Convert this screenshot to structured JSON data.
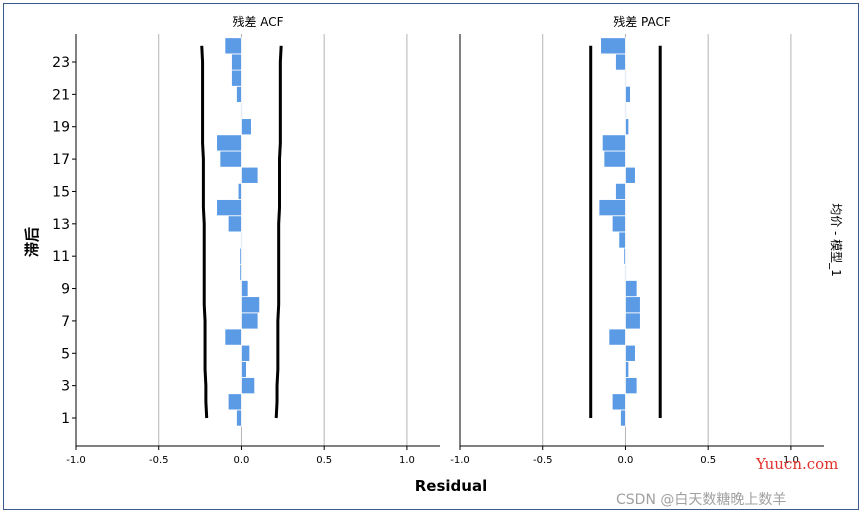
{
  "chart_data": [
    {
      "type": "bar",
      "orientation": "horizontal",
      "title": "残差 ACF",
      "lags": [
        1,
        2,
        3,
        4,
        5,
        6,
        7,
        8,
        9,
        10,
        11,
        12,
        13,
        14,
        15,
        16,
        17,
        18,
        19,
        20,
        21,
        22,
        23,
        24
      ],
      "values": [
        -0.03,
        -0.08,
        0.08,
        0.03,
        0.05,
        -0.1,
        0.1,
        0.11,
        0.04,
        -0.01,
        -0.01,
        0.0,
        -0.08,
        -0.15,
        -0.02,
        0.1,
        -0.13,
        -0.15,
        0.06,
        0.0,
        -0.03,
        -0.06,
        -0.06,
        -0.1
      ],
      "upper_limit": [
        0.21,
        0.215,
        0.215,
        0.22,
        0.22,
        0.22,
        0.22,
        0.225,
        0.225,
        0.225,
        0.225,
        0.225,
        0.225,
        0.23,
        0.23,
        0.23,
        0.23,
        0.235,
        0.235,
        0.235,
        0.235,
        0.235,
        0.235,
        0.24
      ],
      "lower_limit": [
        -0.21,
        -0.215,
        -0.215,
        -0.22,
        -0.22,
        -0.22,
        -0.22,
        -0.225,
        -0.225,
        -0.225,
        -0.225,
        -0.225,
        -0.225,
        -0.23,
        -0.23,
        -0.23,
        -0.23,
        -0.235,
        -0.235,
        -0.235,
        -0.235,
        -0.235,
        -0.235,
        -0.24
      ],
      "xlim": [
        -1.0,
        1.2
      ],
      "xticks": [
        "-1.0",
        "-0.5",
        "0.0",
        "0.5",
        "1.0"
      ],
      "bar_color": "#5b9be6",
      "limit_color": "#000000"
    },
    {
      "type": "bar",
      "orientation": "horizontal",
      "title": "残差 PACF",
      "lags": [
        1,
        2,
        3,
        4,
        5,
        6,
        7,
        8,
        9,
        10,
        11,
        12,
        13,
        14,
        15,
        16,
        17,
        18,
        19,
        20,
        21,
        22,
        23,
        24
      ],
      "values": [
        -0.03,
        -0.08,
        0.07,
        0.02,
        0.06,
        -0.1,
        0.09,
        0.09,
        0.07,
        0.0,
        -0.01,
        -0.04,
        -0.08,
        -0.16,
        -0.06,
        0.06,
        -0.13,
        -0.14,
        0.02,
        0.0,
        0.03,
        0.0,
        -0.06,
        -0.15
      ],
      "upper_limit": [
        0.21,
        0.21,
        0.21,
        0.21,
        0.21,
        0.21,
        0.21,
        0.21,
        0.21,
        0.21,
        0.21,
        0.21,
        0.21,
        0.21,
        0.21,
        0.21,
        0.21,
        0.21,
        0.21,
        0.21,
        0.21,
        0.21,
        0.21,
        0.21
      ],
      "lower_limit": [
        -0.21,
        -0.21,
        -0.21,
        -0.21,
        -0.21,
        -0.21,
        -0.21,
        -0.21,
        -0.21,
        -0.21,
        -0.21,
        -0.21,
        -0.21,
        -0.21,
        -0.21,
        -0.21,
        -0.21,
        -0.21,
        -0.21,
        -0.21,
        -0.21,
        -0.21,
        -0.21,
        -0.21
      ],
      "xlim": [
        -1.0,
        1.2
      ],
      "xticks": [
        "-1.0",
        "-0.5",
        "0.0",
        "0.5",
        "1.0"
      ],
      "bar_color": "#5b9be6",
      "limit_color": "#000000"
    }
  ],
  "y_axis": {
    "label": "滞后",
    "tick_labels": [
      "1",
      "3",
      "5",
      "7",
      "9",
      "11",
      "13",
      "15",
      "17",
      "19",
      "21",
      "23"
    ]
  },
  "x_axis": {
    "label": "Residual"
  },
  "side_label": "均价 - 模型_1",
  "grid": true,
  "watermarks": {
    "site": "Yuucn.com",
    "credit": "CSDN @白天数糖晚上数羊"
  }
}
